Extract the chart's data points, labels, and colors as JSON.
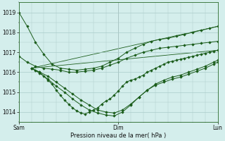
{
  "title": "Pression niveau de la mer( hPa )",
  "bg_color": "#d4eeec",
  "grid_color": "#aaccca",
  "line_color": "#1a5c1a",
  "marker_color": "#1a5c1a",
  "xlim": [
    0,
    48
  ],
  "ylim": [
    1013.5,
    1019.5
  ],
  "yticks": [
    1014,
    1015,
    1016,
    1017,
    1018,
    1019
  ],
  "xtick_positions": [
    0,
    24,
    48
  ],
  "xtick_labels": [
    "Sam",
    "Dim",
    "Lun"
  ],
  "series": [
    {
      "x": [
        0,
        2,
        4,
        6,
        8,
        10,
        12,
        14,
        16,
        18,
        20,
        22,
        24,
        26,
        28,
        30,
        32,
        34,
        36,
        38,
        40,
        42,
        44,
        46,
        48
      ],
      "y": [
        1019.0,
        1018.3,
        1017.5,
        1016.9,
        1016.4,
        1016.2,
        1016.15,
        1016.1,
        1016.15,
        1016.2,
        1016.3,
        1016.5,
        1016.7,
        1017.0,
        1017.2,
        1017.4,
        1017.55,
        1017.65,
        1017.7,
        1017.8,
        1017.9,
        1018.0,
        1018.1,
        1018.2,
        1018.3
      ]
    },
    {
      "x": [
        0,
        2,
        4,
        6,
        8,
        10,
        12,
        14,
        16,
        18,
        20,
        22,
        24,
        26,
        28,
        30,
        32,
        34,
        36,
        38,
        40,
        42,
        44,
        46,
        48
      ],
      "y": [
        1016.8,
        1016.5,
        1016.3,
        1016.2,
        1016.15,
        1016.1,
        1016.0,
        1016.0,
        1016.05,
        1016.1,
        1016.2,
        1016.35,
        1016.5,
        1016.7,
        1016.85,
        1017.0,
        1017.1,
        1017.2,
        1017.25,
        1017.3,
        1017.35,
        1017.4,
        1017.45,
        1017.5,
        1017.55
      ]
    },
    {
      "x": [
        3,
        5,
        7,
        9,
        11,
        13,
        15,
        17,
        19,
        21,
        23,
        25,
        27,
        29,
        31,
        33,
        35,
        37,
        39,
        41,
        43,
        45,
        47,
        48
      ],
      "y": [
        1016.2,
        1016.0,
        1015.8,
        1015.5,
        1015.2,
        1014.9,
        1014.6,
        1014.35,
        1014.1,
        1014.0,
        1013.95,
        1014.1,
        1014.4,
        1014.75,
        1015.1,
        1015.4,
        1015.6,
        1015.75,
        1015.85,
        1016.0,
        1016.15,
        1016.3,
        1016.5,
        1016.6
      ]
    },
    {
      "x": [
        3,
        5,
        7,
        9,
        11,
        13,
        15,
        17,
        19,
        21,
        23,
        25,
        27,
        29,
        31,
        33,
        35,
        37,
        39,
        41,
        43,
        45,
        47,
        48
      ],
      "y": [
        1016.2,
        1015.95,
        1015.65,
        1015.3,
        1015.0,
        1014.65,
        1014.35,
        1014.1,
        1013.95,
        1013.85,
        1013.8,
        1014.0,
        1014.35,
        1014.75,
        1015.1,
        1015.35,
        1015.5,
        1015.65,
        1015.75,
        1015.9,
        1016.05,
        1016.2,
        1016.4,
        1016.5
      ]
    },
    {
      "x": [
        3,
        4,
        5,
        6,
        7,
        8,
        9,
        10,
        11,
        12,
        13,
        14,
        15,
        16,
        17,
        18,
        19,
        20,
        21,
        22,
        23,
        24,
        25,
        26,
        27,
        28,
        29,
        30,
        31,
        32,
        33,
        34,
        35,
        36,
        37,
        38,
        39,
        40,
        41,
        42,
        43,
        44,
        45,
        46,
        47,
        48
      ],
      "y": [
        1016.2,
        1016.1,
        1016.0,
        1015.8,
        1015.6,
        1015.4,
        1015.1,
        1014.85,
        1014.6,
        1014.4,
        1014.2,
        1014.05,
        1013.95,
        1013.9,
        1014.0,
        1014.1,
        1014.2,
        1014.4,
        1014.55,
        1014.65,
        1014.85,
        1015.05,
        1015.3,
        1015.5,
        1015.6,
        1015.65,
        1015.75,
        1015.85,
        1016.0,
        1016.1,
        1016.2,
        1016.3,
        1016.4,
        1016.5,
        1016.55,
        1016.6,
        1016.65,
        1016.7,
        1016.75,
        1016.8,
        1016.85,
        1016.9,
        1016.95,
        1017.0,
        1017.05,
        1017.1
      ]
    }
  ],
  "fan_lines": [
    {
      "x": [
        3,
        48
      ],
      "y": [
        1016.2,
        1018.3
      ]
    },
    {
      "x": [
        3,
        48
      ],
      "y": [
        1016.2,
        1017.1
      ]
    }
  ]
}
